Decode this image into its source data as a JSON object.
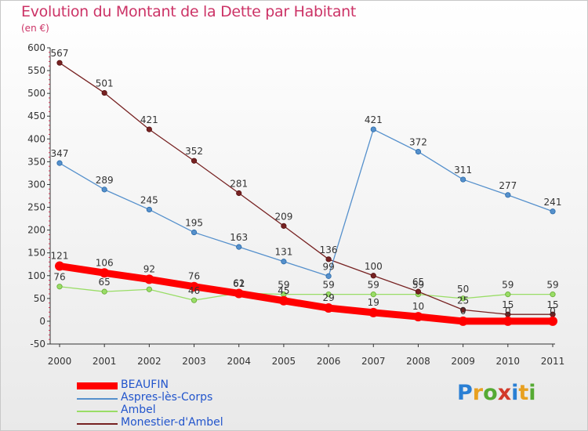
{
  "title": "Evolution du Montant de la Dette par Habitant",
  "subtitle": "(en €)",
  "logo": "Proxiti",
  "colors": {
    "title": "#cc3366",
    "beaufin": "#ff0000",
    "aspres": "#5590cc",
    "ambel": "#99dd66",
    "monestier": "#772222",
    "legend_text": "#2255cc"
  },
  "chart_data": {
    "type": "line",
    "title": "Evolution du Montant de la Dette par Habitant",
    "ylabel": "(en €)",
    "x": [
      "2000",
      "2001",
      "2002",
      "2003",
      "2004",
      "2005",
      "2006",
      "2007",
      "2008",
      "2009",
      "2010",
      "2011"
    ],
    "ylim": [
      -50,
      600
    ],
    "yticks": [
      -50,
      0,
      50,
      100,
      150,
      200,
      250,
      300,
      350,
      400,
      450,
      500,
      550,
      600
    ],
    "grid": false,
    "legend_position": "bottom-left",
    "series": [
      {
        "name": "BEAUFIN",
        "color": "#ff0000",
        "values": [
          121,
          106,
          92,
          76,
          61,
          45,
          29,
          19,
          10,
          0,
          0,
          0
        ]
      },
      {
        "name": "Aspres-lès-Corps",
        "color": "#5590cc",
        "values": [
          347,
          289,
          245,
          195,
          163,
          131,
          99,
          421,
          372,
          311,
          277,
          241
        ]
      },
      {
        "name": "Ambel",
        "color": "#99dd66",
        "values": [
          76,
          65,
          70,
          46,
          62,
          59,
          59,
          59,
          59,
          50,
          59,
          59
        ]
      },
      {
        "name": "Monestier-d'Ambel",
        "color": "#772222",
        "values": [
          567,
          501,
          421,
          352,
          281,
          209,
          136,
          100,
          65,
          25,
          15,
          15
        ]
      }
    ],
    "data_labels": {
      "BEAUFIN": [
        "121",
        "106",
        "92",
        "76",
        "61",
        "45",
        "29",
        "19",
        "10",
        "0",
        "0",
        "0"
      ],
      "Aspres-lès-Corps": [
        "347",
        "289",
        "245",
        "195",
        "163",
        "131",
        "99",
        "421",
        "372",
        "311",
        "277",
        "241"
      ],
      "Ambel": [
        "76",
        "65",
        "",
        "46",
        "62",
        "59",
        "59",
        "59",
        "59",
        "50",
        "59",
        "59"
      ],
      "Monestier-d'Ambel": [
        "567",
        "501",
        "421",
        "352",
        "281",
        "209",
        "136",
        "100",
        "65",
        "25",
        "15",
        "15"
      ]
    }
  }
}
